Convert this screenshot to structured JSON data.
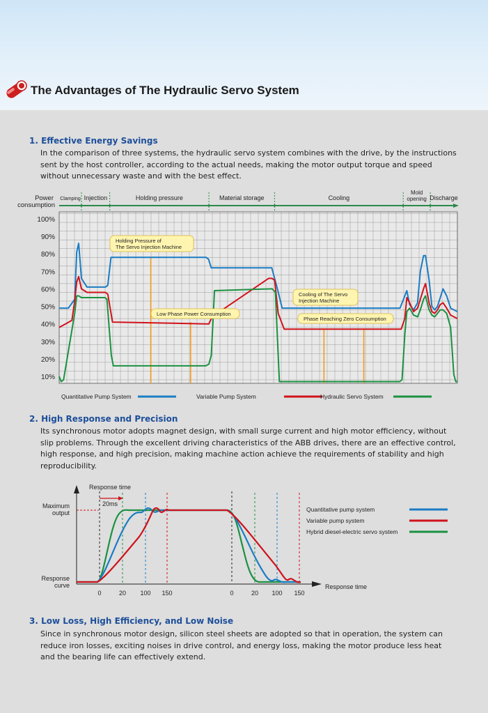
{
  "header": {
    "title": "The Advantages of The Hydraulic Servo System"
  },
  "sections": [
    {
      "title": "1. Effective Energy Savings",
      "body": "In the comparison of three systems, the hydraulic servo system combines with the drive, by the instructions sent by the host controller, according to the actual needs, making the motor output torque and speed without unnecessary waste and with the best effect."
    },
    {
      "title": "2. High Response and Precision",
      "body": "Its synchronous motor adopts magnet design, with small surge current and high motor efficiency, without slip problems. Through the excellent driving characteristics of the ABB drives, there are an effective control, high response, and high precision, making machine action achieve the requirements of stability and high reproducibility."
    },
    {
      "title": "3. Low Loss, High Efficiency, and Low Noise",
      "body": "Since in synchronous motor design, silicon steel sheets are adopted so that in operation, the system can reduce iron losses, exciting noises in drive control, and energy loss, making the motor produce less heat and the bearing life can effectively extend."
    }
  ],
  "colors": {
    "quantitative": "#1a7cc4",
    "variable": "#d0121b",
    "servo": "#1a9141",
    "phase_line": "#2a8a4a",
    "marker": "#f39a1e",
    "title_blue": "#1d4f9a"
  },
  "chart_data": [
    {
      "type": "line",
      "ylabel": "Power consumption",
      "yticks": [
        "100%",
        "90%",
        "80%",
        "70%",
        "60%",
        "50%",
        "40%",
        "30%",
        "20%",
        "10%"
      ],
      "ylim": [
        6,
        104
      ],
      "xlim": [
        0,
        100
      ],
      "phases": [
        "Clamping",
        "Injection",
        "Holding pressure",
        "Material storage",
        "Cooling",
        "Mold opening",
        "Discharge"
      ],
      "phase_bounds": [
        0,
        5.6,
        12.7,
        37.6,
        54.1,
        86.4,
        93.2,
        100
      ],
      "grid": true,
      "annotations": [
        "Holding Pressure of The Servo Injection Machine",
        "Low Phase Power Consumption",
        "Cooling of The Servo Injection Machine",
        "Phase Reaching Zero Consumption"
      ],
      "series": [
        {
          "name": "Quantitative Pump System",
          "color": "#1a7cc4",
          "x": [
            0,
            2.3,
            3.9,
            4.4,
            4.9,
            5.6,
            7.0,
            11.6,
            12.2,
            13.0,
            36.9,
            37.5,
            38.2,
            53.4,
            54.8,
            56.0,
            85.6,
            86.8,
            87.3,
            88.0,
            89.0,
            90.0,
            90.7,
            91.5,
            92.0,
            92.9,
            93.6,
            94.3,
            95.0,
            95.7,
            96.4,
            97.3,
            98.3,
            100
          ],
          "y": [
            49,
            49,
            54,
            81,
            86,
            66,
            61,
            61,
            62,
            78,
            78,
            77,
            72,
            72,
            60,
            49,
            49,
            56,
            59,
            51,
            48,
            52,
            70,
            79,
            79,
            65,
            50,
            48,
            50,
            55,
            60,
            56,
            49,
            47
          ]
        },
        {
          "name": "Variable Pump System",
          "color": "#d0121b",
          "x": [
            0,
            1.6,
            3.2,
            3.9,
            4.4,
            4.9,
            5.6,
            7.0,
            11.6,
            12.2,
            13.4,
            36.9,
            37.6,
            38.4,
            52.6,
            53.4,
            54.1,
            55.0,
            56.5,
            85.9,
            86.8,
            87.3,
            88.0,
            89.0,
            90.0,
            90.7,
            91.5,
            92.0,
            92.9,
            93.6,
            94.3,
            95.0,
            95.7,
            96.4,
            97.3,
            98.3,
            100
          ],
          "y": [
            38,
            40,
            42,
            53,
            64,
            67,
            60,
            58,
            58,
            57,
            41,
            40,
            40,
            44,
            66,
            66,
            65,
            46,
            37,
            37,
            43,
            55,
            52,
            47,
            49,
            54,
            60,
            63,
            52,
            47,
            46,
            48,
            51,
            52,
            49,
            45,
            43
          ]
        },
        {
          "name": "Hydraulic Servo System",
          "color": "#1a9141",
          "x": [
            0,
            0.5,
            1.1,
            3.9,
            4.4,
            4.9,
            5.6,
            11.5,
            12.0,
            13.1,
            13.6,
            36.8,
            37.6,
            38.2,
            39.0,
            53.5,
            54.3,
            55.3,
            85.5,
            86.1,
            86.8,
            87.3,
            88.0,
            89.0,
            90.0,
            90.7,
            91.5,
            92.0,
            92.9,
            93.6,
            94.3,
            95.0,
            95.7,
            96.4,
            97.3,
            98.3,
            99.1,
            99.6,
            100
          ],
          "y": [
            10,
            7,
            8,
            46,
            56,
            56,
            55,
            55,
            54,
            22,
            16,
            16,
            17,
            22,
            59,
            60,
            58,
            7,
            7,
            8,
            34,
            47,
            49,
            45,
            44,
            48,
            54,
            56,
            48,
            45,
            44,
            46,
            48,
            48,
            46,
            38,
            11,
            7,
            7
          ]
        }
      ]
    },
    {
      "type": "line",
      "xlabel": "Response time",
      "ylabel_top": "Maximum output",
      "ylabel_bottom": "Response curve",
      "top_label": "Response time",
      "span_label": "20ms",
      "xticks": [
        "0",
        "20",
        "100",
        "150"
      ],
      "grid": false,
      "legend_position": "right",
      "series": [
        {
          "name": "Quantitative pump system",
          "color": "#1a7cc4"
        },
        {
          "name": "Variable pump system",
          "color": "#d0121b"
        },
        {
          "name": "Hybrid diesel-electric servo system",
          "color": "#1a9141"
        }
      ]
    }
  ]
}
